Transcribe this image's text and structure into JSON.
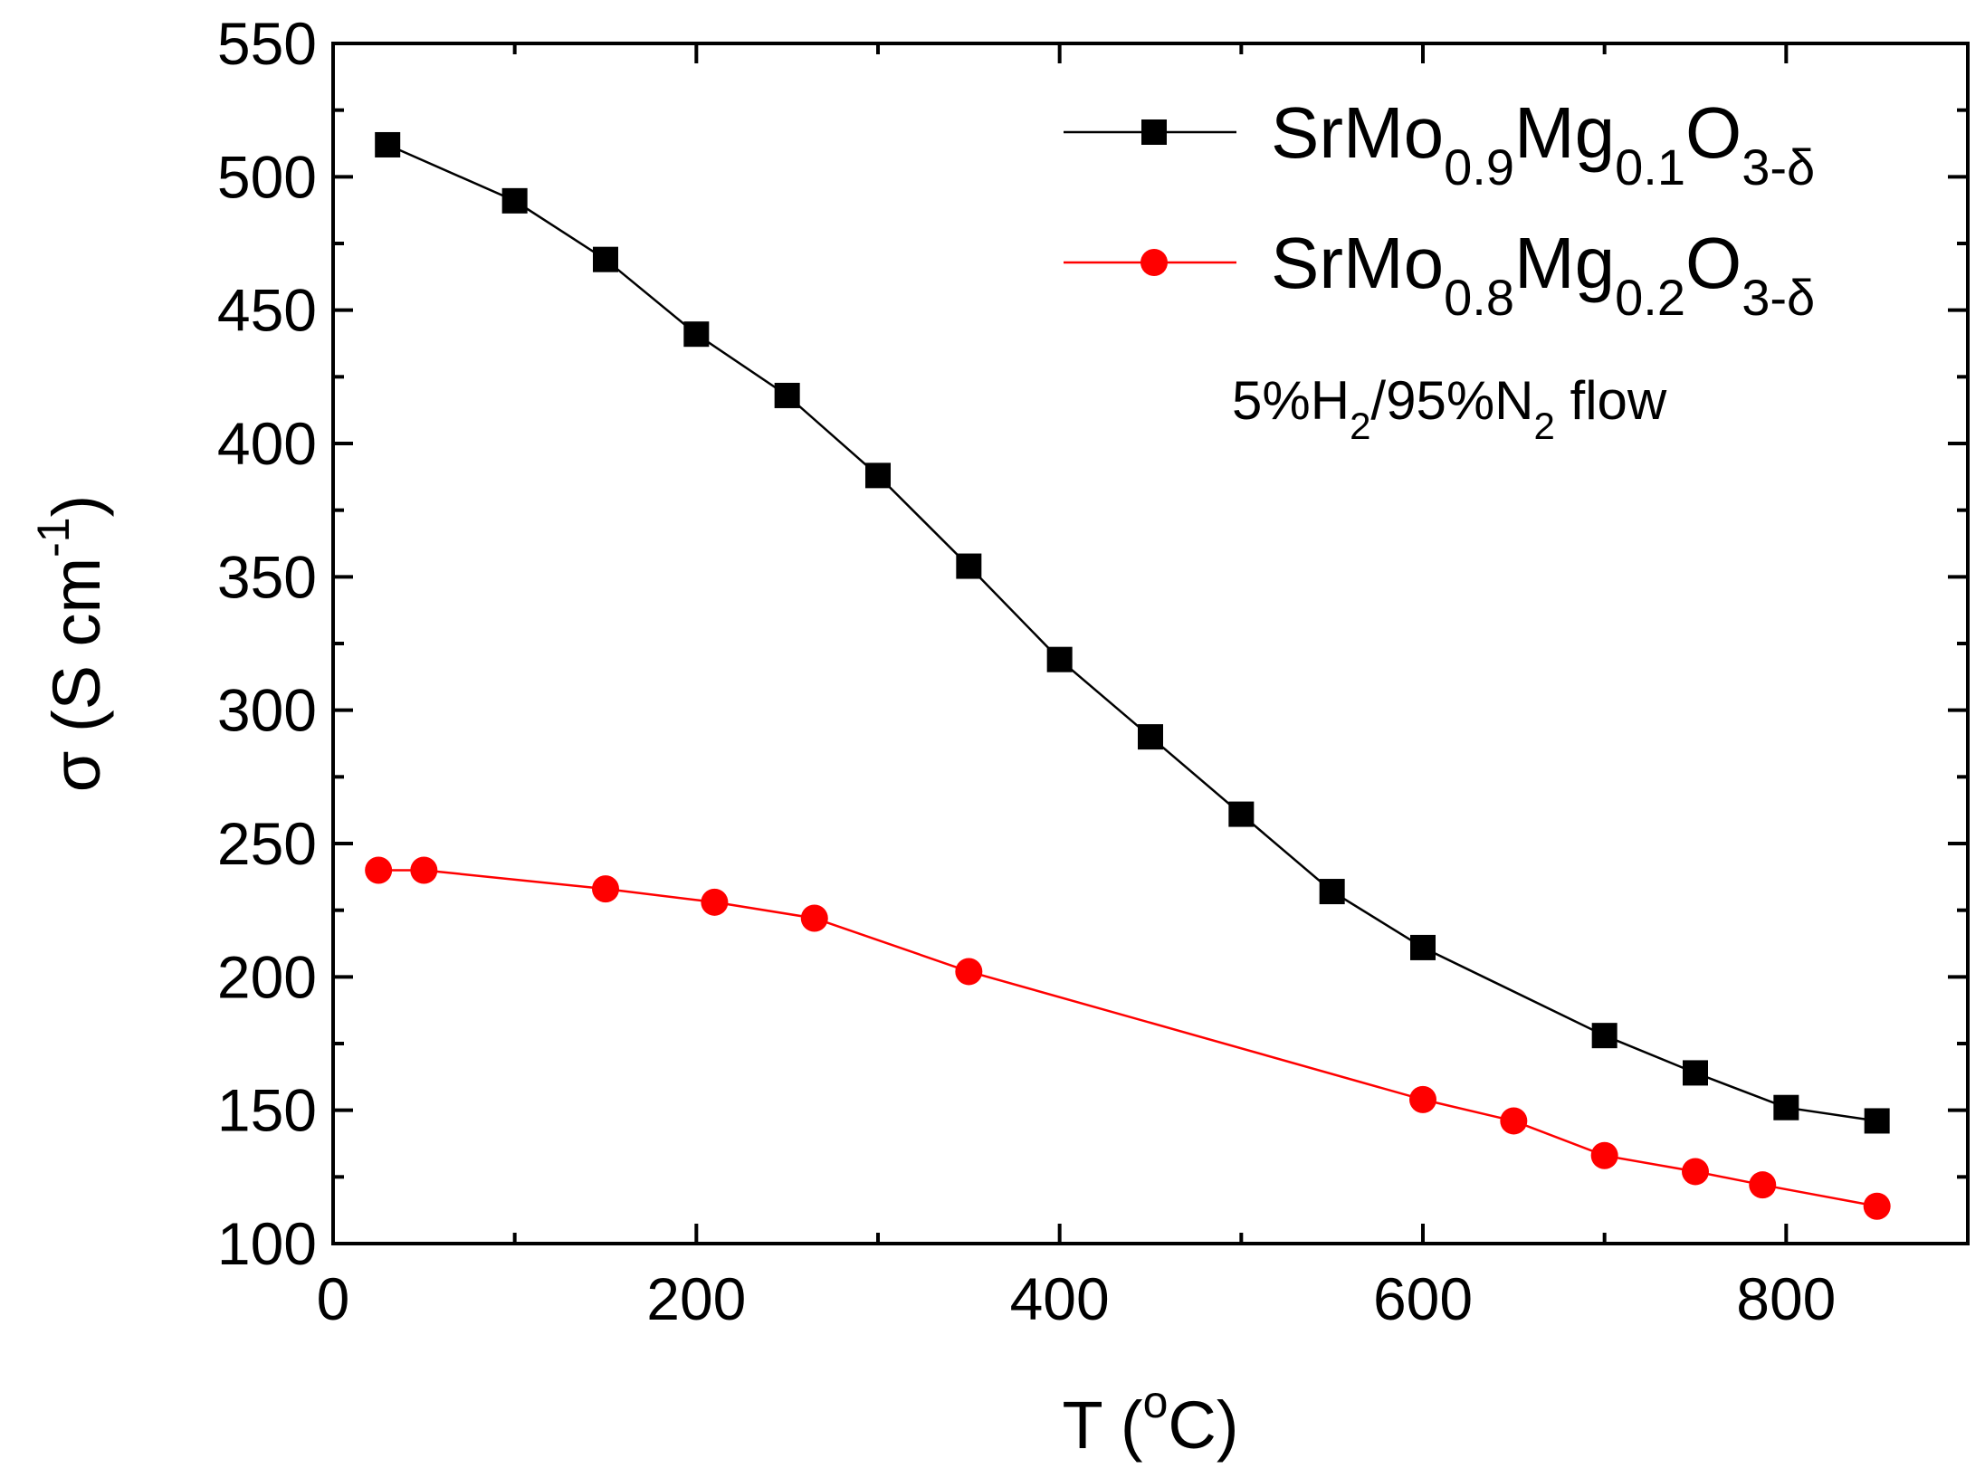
{
  "chart_data": {
    "type": "line",
    "title": "",
    "xlabel": "T (°C)",
    "xlabel_parts": {
      "prefix": "T (",
      "sup": "o",
      "suffix": "C)"
    },
    "ylabel": "σ (S cm⁻¹)",
    "ylabel_parts": {
      "prefix": "σ (S cm",
      "sup": "-1",
      "suffix": ")"
    },
    "xlim": [
      0,
      900
    ],
    "ylim": [
      100,
      550
    ],
    "x_ticks": [
      0,
      200,
      400,
      600,
      800
    ],
    "y_ticks": [
      100,
      150,
      200,
      250,
      300,
      350,
      400,
      450,
      500,
      550
    ],
    "grid": false,
    "legend_position": "top-right",
    "annotation": {
      "parts": [
        {
          "text": "5%H",
          "sub": false
        },
        {
          "text": "2",
          "sub": true
        },
        {
          "text": "/95%N",
          "sub": false
        },
        {
          "text": "2",
          "sub": true
        },
        {
          "text": " flow",
          "sub": false
        }
      ]
    },
    "series": [
      {
        "name": "SrMo0.9Mg0.1O3-δ",
        "name_parts": [
          {
            "text": "SrMo",
            "sub": false
          },
          {
            "text": "0.9",
            "sub": true
          },
          {
            "text": "Mg",
            "sub": false
          },
          {
            "text": "0.1",
            "sub": true
          },
          {
            "text": "O",
            "sub": false
          },
          {
            "text": "3-δ",
            "sub": true
          }
        ],
        "color": "#000000",
        "marker": "square",
        "x": [
          30,
          100,
          150,
          200,
          250,
          300,
          350,
          400,
          450,
          500,
          550,
          600,
          700,
          750,
          800,
          850
        ],
        "values": [
          512,
          491,
          469,
          441,
          418,
          388,
          354,
          319,
          290,
          261,
          232,
          211,
          178,
          164,
          151,
          146
        ]
      },
      {
        "name": "SrMo0.8Mg0.2O3-δ",
        "name_parts": [
          {
            "text": "SrMo",
            "sub": false
          },
          {
            "text": "0.8",
            "sub": true
          },
          {
            "text": "Mg",
            "sub": false
          },
          {
            "text": "0.2",
            "sub": true
          },
          {
            "text": "O",
            "sub": false
          },
          {
            "text": "3-δ",
            "sub": true
          }
        ],
        "color": "#ff0000",
        "marker": "circle",
        "x": [
          25,
          50,
          150,
          210,
          265,
          350,
          600,
          650,
          700,
          750,
          787,
          850
        ],
        "values": [
          240,
          240,
          233,
          228,
          222,
          202,
          154,
          146,
          133,
          127,
          122,
          114
        ]
      }
    ]
  }
}
